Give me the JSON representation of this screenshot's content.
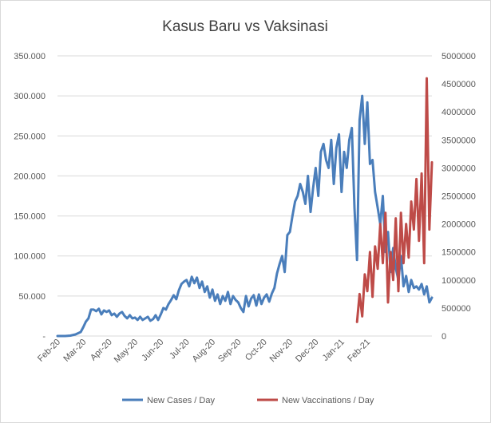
{
  "chart_data": {
    "type": "line",
    "title": "Kasus Baru vs Vaksinasi",
    "xlabel": "",
    "ylabel": "",
    "x_categories": [
      "Feb-20",
      "Mar-20",
      "Apr-20",
      "May-20",
      "Jun-20",
      "Jul-20",
      "Aug-20",
      "Sep-20",
      "Oct-20",
      "Nov-20",
      "Dec-20",
      "Jan-21",
      "Feb-21"
    ],
    "y_left": {
      "ylim": [
        0,
        350000
      ],
      "tick_labels": [
        "-",
        "50.000",
        "100.000",
        "150.000",
        "200.000",
        "250.000",
        "300.000",
        "350.000"
      ]
    },
    "y_right": {
      "ylim": [
        0,
        5000000
      ],
      "tick_labels": [
        "0",
        "500000",
        "1000000",
        "1500000",
        "2000000",
        "2500000",
        "3000000",
        "3500000",
        "4000000",
        "4500000",
        "5000000"
      ]
    },
    "grid": true,
    "legend_position": "bottom",
    "colors": {
      "cases": "#4a7ebb",
      "vaccinations": "#be4b48"
    },
    "series": [
      {
        "name": "New Cases / Day",
        "axis": "left",
        "points": [
          [
            0,
            0
          ],
          [
            0.3,
            0
          ],
          [
            0.5,
            500
          ],
          [
            0.7,
            2000
          ],
          [
            0.9,
            5000
          ],
          [
            1.0,
            11000
          ],
          [
            1.1,
            18000
          ],
          [
            1.2,
            22000
          ],
          [
            1.3,
            33000
          ],
          [
            1.4,
            33000
          ],
          [
            1.5,
            31000
          ],
          [
            1.6,
            34000
          ],
          [
            1.7,
            27000
          ],
          [
            1.8,
            32000
          ],
          [
            1.9,
            30000
          ],
          [
            2.0,
            32000
          ],
          [
            2.1,
            26000
          ],
          [
            2.2,
            28000
          ],
          [
            2.3,
            24000
          ],
          [
            2.4,
            28000
          ],
          [
            2.5,
            30000
          ],
          [
            2.6,
            25000
          ],
          [
            2.7,
            22000
          ],
          [
            2.8,
            26000
          ],
          [
            2.9,
            22000
          ],
          [
            3.0,
            23000
          ],
          [
            3.1,
            20000
          ],
          [
            3.2,
            24000
          ],
          [
            3.3,
            20000
          ],
          [
            3.4,
            22000
          ],
          [
            3.5,
            24000
          ],
          [
            3.6,
            19000
          ],
          [
            3.7,
            21000
          ],
          [
            3.8,
            26000
          ],
          [
            3.9,
            20000
          ],
          [
            4.0,
            27000
          ],
          [
            4.1,
            35000
          ],
          [
            4.2,
            33000
          ],
          [
            4.3,
            40000
          ],
          [
            4.4,
            45000
          ],
          [
            4.5,
            51000
          ],
          [
            4.6,
            46000
          ],
          [
            4.7,
            57000
          ],
          [
            4.8,
            65000
          ],
          [
            4.9,
            68000
          ],
          [
            5.0,
            70000
          ],
          [
            5.1,
            62000
          ],
          [
            5.2,
            74000
          ],
          [
            5.3,
            66000
          ],
          [
            5.4,
            73000
          ],
          [
            5.5,
            60000
          ],
          [
            5.6,
            68000
          ],
          [
            5.7,
            55000
          ],
          [
            5.8,
            62000
          ],
          [
            5.9,
            48000
          ],
          [
            6.0,
            58000
          ],
          [
            6.1,
            44000
          ],
          [
            6.2,
            52000
          ],
          [
            6.3,
            40000
          ],
          [
            6.4,
            50000
          ],
          [
            6.5,
            44000
          ],
          [
            6.6,
            55000
          ],
          [
            6.7,
            40000
          ],
          [
            6.8,
            50000
          ],
          [
            6.9,
            45000
          ],
          [
            7.0,
            42000
          ],
          [
            7.1,
            35000
          ],
          [
            7.2,
            30000
          ],
          [
            7.3,
            50000
          ],
          [
            7.4,
            37000
          ],
          [
            7.5,
            47000
          ],
          [
            7.6,
            51000
          ],
          [
            7.7,
            38000
          ],
          [
            7.8,
            52000
          ],
          [
            7.9,
            40000
          ],
          [
            8.0,
            48000
          ],
          [
            8.1,
            52000
          ],
          [
            8.2,
            43000
          ],
          [
            8.3,
            53000
          ],
          [
            8.4,
            60000
          ],
          [
            8.5,
            78000
          ],
          [
            8.6,
            90000
          ],
          [
            8.7,
            100000
          ],
          [
            8.8,
            80000
          ],
          [
            8.9,
            126000
          ],
          [
            9.0,
            130000
          ],
          [
            9.1,
            150000
          ],
          [
            9.2,
            168000
          ],
          [
            9.3,
            175000
          ],
          [
            9.4,
            190000
          ],
          [
            9.5,
            180000
          ],
          [
            9.6,
            165000
          ],
          [
            9.7,
            200000
          ],
          [
            9.8,
            155000
          ],
          [
            9.9,
            185000
          ],
          [
            10.0,
            210000
          ],
          [
            10.1,
            175000
          ],
          [
            10.2,
            230000
          ],
          [
            10.3,
            240000
          ],
          [
            10.4,
            220000
          ],
          [
            10.5,
            210000
          ],
          [
            10.6,
            245000
          ],
          [
            10.7,
            190000
          ],
          [
            10.8,
            235000
          ],
          [
            10.9,
            252000
          ],
          [
            11.0,
            180000
          ],
          [
            11.1,
            230000
          ],
          [
            11.2,
            210000
          ],
          [
            11.3,
            245000
          ],
          [
            11.4,
            260000
          ],
          [
            11.5,
            160000
          ],
          [
            11.6,
            95000
          ],
          [
            11.7,
            270000
          ],
          [
            11.8,
            300000
          ],
          [
            11.9,
            240000
          ],
          [
            12.0,
            292000
          ],
          [
            12.1,
            215000
          ],
          [
            12.2,
            220000
          ],
          [
            12.3,
            180000
          ],
          [
            12.4,
            160000
          ],
          [
            12.5,
            140000
          ],
          [
            12.6,
            175000
          ],
          [
            12.7,
            105000
          ],
          [
            12.8,
            130000
          ],
          [
            12.9,
            80000
          ],
          [
            13.0,
            110000
          ],
          [
            13.1,
            85000
          ],
          [
            13.2,
            70000
          ],
          [
            13.3,
            100000
          ],
          [
            13.4,
            62000
          ],
          [
            13.5,
            75000
          ],
          [
            13.6,
            55000
          ],
          [
            13.7,
            70000
          ],
          [
            13.8,
            60000
          ],
          [
            13.9,
            62000
          ],
          [
            14.0,
            58000
          ],
          [
            14.1,
            65000
          ],
          [
            14.2,
            52000
          ],
          [
            14.3,
            62000
          ],
          [
            14.4,
            42000
          ],
          [
            14.5,
            48000
          ]
        ]
      },
      {
        "name": "New Vaccinations / Day",
        "axis": "right",
        "points": [
          [
            11.6,
            250000
          ],
          [
            11.7,
            750000
          ],
          [
            11.8,
            350000
          ],
          [
            11.9,
            1100000
          ],
          [
            12.0,
            800000
          ],
          [
            12.1,
            1500000
          ],
          [
            12.2,
            700000
          ],
          [
            12.3,
            1600000
          ],
          [
            12.4,
            1200000
          ],
          [
            12.5,
            2000000
          ],
          [
            12.6,
            1300000
          ],
          [
            12.7,
            2200000
          ],
          [
            12.8,
            600000
          ],
          [
            12.9,
            1500000
          ],
          [
            13.0,
            1000000
          ],
          [
            13.1,
            2100000
          ],
          [
            13.2,
            800000
          ],
          [
            13.3,
            2200000
          ],
          [
            13.4,
            1300000
          ],
          [
            13.5,
            2000000
          ],
          [
            13.6,
            1400000
          ],
          [
            13.7,
            2400000
          ],
          [
            13.8,
            1900000
          ],
          [
            13.9,
            2800000
          ],
          [
            14.0,
            1700000
          ],
          [
            14.1,
            2900000
          ],
          [
            14.2,
            1300000
          ],
          [
            14.3,
            4600000
          ],
          [
            14.4,
            1900000
          ],
          [
            14.5,
            3100000
          ]
        ]
      }
    ]
  }
}
